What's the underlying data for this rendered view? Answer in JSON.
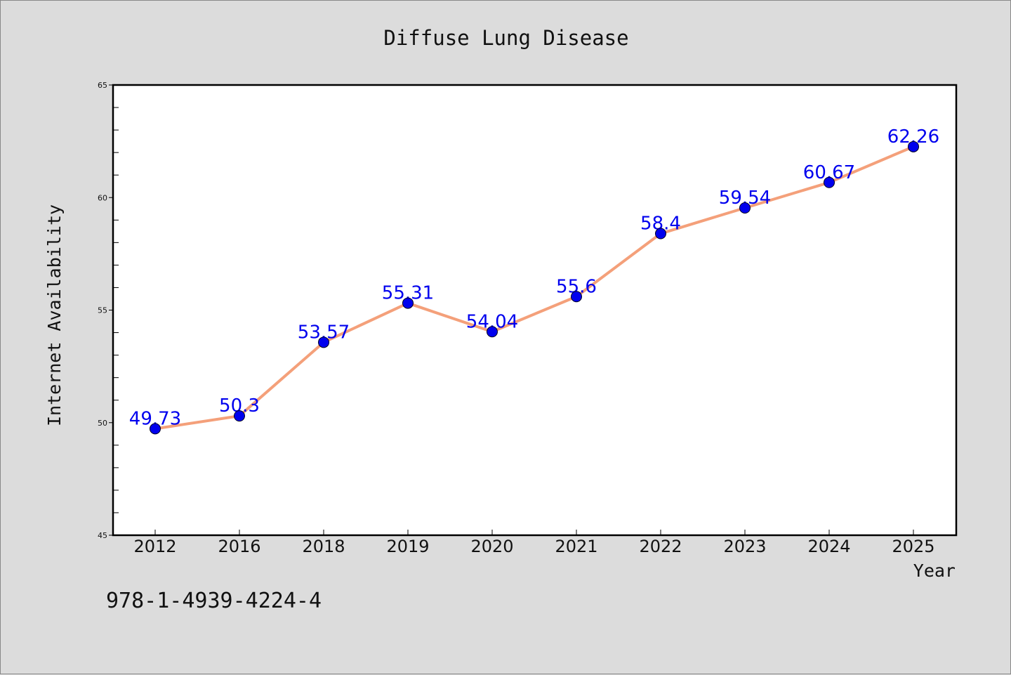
{
  "chart_data": {
    "type": "line",
    "title": "Diffuse Lung Disease",
    "xlabel": "Year",
    "ylabel": "Internet Availability",
    "categories": [
      "2012",
      "2016",
      "2018",
      "2019",
      "2020",
      "2021",
      "2022",
      "2023",
      "2024",
      "2025"
    ],
    "series": [
      {
        "values": [
          49.73,
          50.3,
          53.57,
          55.31,
          54.04,
          55.6,
          58.4,
          59.54,
          60.67,
          62.26
        ],
        "data_labels": [
          "49.73",
          "50.3",
          "53.57",
          "55.31",
          "54.04",
          "55.6",
          "58.4",
          "59.54",
          "60.67",
          "62.26"
        ]
      }
    ],
    "ylim": [
      45,
      65
    ],
    "y_ticks": [
      "45",
      "50",
      "55",
      "60",
      "65"
    ],
    "grid": false,
    "colors": {
      "line": "#f4a07a",
      "marker": "#0000ee",
      "data_label": "#0000ee",
      "background": "#dcdcdc",
      "plot_background": "#ffffff"
    }
  },
  "annotation": {
    "isbn": "978-1-4939-4224-4"
  }
}
